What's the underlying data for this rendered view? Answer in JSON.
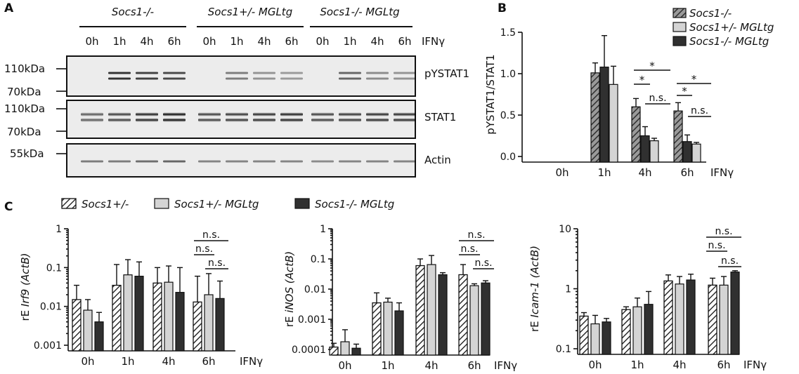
{
  "panel_a": {
    "letter": "A",
    "groups": [
      "Socs1-/-",
      "Socs1+/- MGLtg",
      "Socs1-/- MGLtg"
    ],
    "timepoints": [
      "0h",
      "1h",
      "4h",
      "6h"
    ],
    "treatment_label": "IFNγ",
    "markers": [
      "110kDa",
      "70kDa",
      "110kDa",
      "70kDa",
      "55kDa"
    ],
    "blots": [
      "pYSTAT1",
      "STAT1",
      "Actin"
    ],
    "band_intensity": {
      "pYSTAT1": [
        0.0,
        1.0,
        0.9,
        0.85,
        0.0,
        0.5,
        0.35,
        0.3,
        0.0,
        0.65,
        0.4,
        0.35
      ],
      "STAT1": [
        0.55,
        0.7,
        0.85,
        0.95,
        0.7,
        0.75,
        0.8,
        0.85,
        0.7,
        0.75,
        0.8,
        0.8
      ],
      "Actin": [
        0.5,
        0.5,
        0.6,
        0.65,
        0.45,
        0.45,
        0.45,
        0.45,
        0.4,
        0.45,
        0.45,
        0.45
      ]
    }
  },
  "colors": {
    "dark": "#303030",
    "light": "#d4d4d4",
    "hatched": "#ffffff"
  },
  "chart_data": [
    {
      "id": "B",
      "type": "bar",
      "panel_letter": "B",
      "ylabel": "pYSTAT1/STAT1",
      "xlabel": "IFNγ",
      "categories": [
        "0h",
        "1h",
        "4h",
        "6h"
      ],
      "ylim": [
        0,
        1.5
      ],
      "yticks": [
        "0.0",
        "0.5",
        "1.0",
        "1.5"
      ],
      "legend_position": "top-right",
      "series": [
        {
          "name": "Socs1-/-",
          "style": "hatched-dark",
          "values": [
            0,
            1.01,
            0.6,
            0.55
          ],
          "errors": [
            0,
            0.12,
            0.1,
            0.1
          ]
        },
        {
          "name": "Socs1+/- MGLtg",
          "style": "light",
          "values": [
            0,
            0.87,
            0.19,
            0.15
          ],
          "errors": [
            0,
            0.22,
            0.03,
            0.02
          ]
        },
        {
          "name": "Socs1-/- MGLtg",
          "style": "dark",
          "values": [
            0,
            1.08,
            0.25,
            0.18
          ],
          "errors": [
            0,
            0.38,
            0.11,
            0.08
          ]
        }
      ],
      "significance": [
        "*",
        "*",
        "n.s.",
        "*",
        "*",
        "n.s."
      ]
    },
    {
      "id": "C1",
      "type": "bar",
      "panel_letter": "C",
      "ylabel_prefix": "rE ",
      "ylabel_gene": "Irf9",
      "ylabel_suffix": " (ActB)",
      "xlabel": "IFNγ",
      "log_scale": true,
      "categories": [
        "0h",
        "1h",
        "4h",
        "6h"
      ],
      "ylim": [
        0.001,
        1
      ],
      "yticks": [
        "0.001",
        "0.01",
        "0.1",
        "1"
      ],
      "legend_position": "top",
      "series": [
        {
          "name": "Socs1+/-",
          "style": "hatched",
          "values": [
            0.015,
            0.035,
            0.04,
            0.013
          ],
          "errors_upper": [
            0.035,
            0.12,
            0.1,
            0.06
          ]
        },
        {
          "name": "Socs1+/- MGLtg",
          "style": "light",
          "values": [
            0.008,
            0.065,
            0.042,
            0.02
          ],
          "errors_upper": [
            0.015,
            0.16,
            0.11,
            0.07
          ]
        },
        {
          "name": "Socs1-/- MGLtg",
          "style": "dark",
          "values": [
            0.004,
            0.06,
            0.023,
            0.016
          ],
          "errors_upper": [
            0.007,
            0.14,
            0.1,
            0.045
          ]
        }
      ],
      "significance": [
        "n.s.",
        "n.s.",
        "n.s."
      ]
    },
    {
      "id": "C2",
      "type": "bar",
      "ylabel_prefix": "rE ",
      "ylabel_gene": "iNOS",
      "ylabel_suffix": " (ActB)",
      "xlabel": "IFNγ",
      "log_scale": true,
      "categories": [
        "0h",
        "1h",
        "4h",
        "6h"
      ],
      "ylim": [
        0.0001,
        1
      ],
      "yticks": [
        "0.0001",
        "0.001",
        "0.01",
        "0.1",
        "1"
      ],
      "series": [
        {
          "name": "Socs1+/-",
          "style": "hatched",
          "values": [
            0.00012,
            0.0035,
            0.06,
            0.03
          ],
          "errors_upper": [
            0.00016,
            0.0075,
            0.1,
            0.065
          ]
        },
        {
          "name": "Socs1+/- MGLtg",
          "style": "light",
          "values": [
            0.00018,
            0.0037,
            0.065,
            0.013
          ],
          "errors_upper": [
            0.00045,
            0.005,
            0.13,
            0.015
          ]
        },
        {
          "name": "Socs1-/- MGLtg",
          "style": "dark",
          "values": [
            0.00011,
            0.0019,
            0.03,
            0.016
          ],
          "errors_upper": [
            0.00015,
            0.0035,
            0.035,
            0.019
          ]
        }
      ],
      "significance": [
        "n.s.",
        "n.s.",
        "n.s."
      ]
    },
    {
      "id": "C3",
      "type": "bar",
      "ylabel_prefix": "rE ",
      "ylabel_gene": "Icam-1",
      "ylabel_suffix": " (ActB)",
      "xlabel": "IFNγ",
      "log_scale": true,
      "categories": [
        "0h",
        "1h",
        "4h",
        "6h"
      ],
      "ylim": [
        0.1,
        10
      ],
      "yticks": [
        "0.1",
        "1",
        "10"
      ],
      "series": [
        {
          "name": "Socs1+/-",
          "style": "hatched",
          "values": [
            0.35,
            0.45,
            1.35,
            1.15
          ],
          "errors_upper": [
            0.4,
            0.5,
            1.7,
            1.5
          ]
        },
        {
          "name": "Socs1+/- MGLtg",
          "style": "light",
          "values": [
            0.26,
            0.5,
            1.2,
            1.15
          ],
          "errors_upper": [
            0.36,
            0.7,
            1.6,
            1.6
          ]
        },
        {
          "name": "Socs1-/- MGLtg",
          "style": "dark",
          "values": [
            0.28,
            0.55,
            1.4,
            1.9
          ],
          "errors_upper": [
            0.32,
            0.9,
            1.75,
            2.0
          ]
        }
      ],
      "significance": [
        "n.s.",
        "n.s.",
        "n.s."
      ]
    }
  ]
}
